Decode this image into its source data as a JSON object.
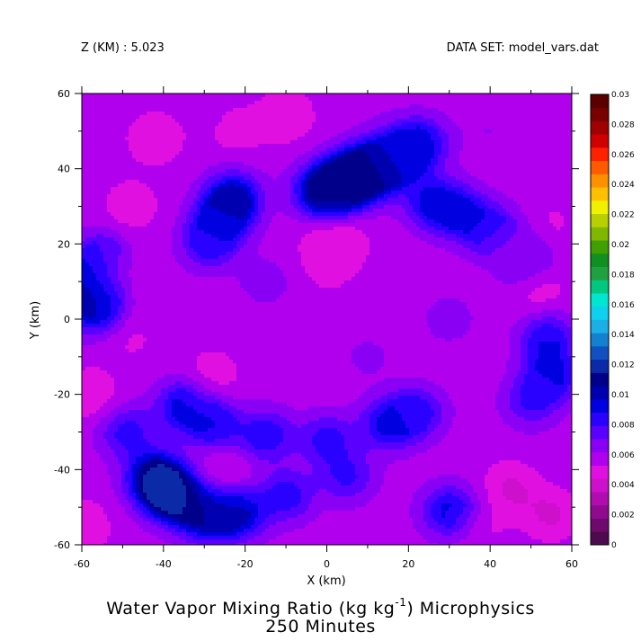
{
  "header": {
    "left": "Z (KM) : 5.023",
    "right": "DATA SET: model_vars.dat"
  },
  "title": {
    "line1_prefix": "Water Vapor Mixing Ratio (kg kg",
    "line1_sup": "-1",
    "line1_suffix": ") Microphysics",
    "line2": "250 Minutes"
  },
  "chart_data": {
    "type": "heatmap",
    "xlabel": "X (km)",
    "ylabel": "Y (km)",
    "xlim": [
      -60,
      60
    ],
    "ylim": [
      -60,
      60
    ],
    "x_ticks": [
      -60,
      -40,
      -20,
      0,
      20,
      40,
      60
    ],
    "y_ticks": [
      -60,
      -40,
      -20,
      0,
      20,
      40,
      60
    ],
    "colorbar": {
      "levels": [
        0,
        0.001,
        0.002,
        0.003,
        0.004,
        0.005,
        0.006,
        0.007,
        0.008,
        0.009,
        0.01,
        0.011,
        0.012,
        0.013,
        0.014,
        0.015,
        0.016,
        0.017,
        0.018,
        0.019,
        0.02,
        0.021,
        0.022,
        0.023,
        0.024,
        0.025,
        0.026,
        0.027,
        0.028,
        0.029,
        0.03
      ],
      "tick_labels": [
        "0",
        "0.002",
        "0.004",
        "0.006",
        "0.008",
        "0.01",
        "0.012",
        "0.014",
        "0.016",
        "0.018",
        "0.02",
        "0.022",
        "0.024",
        "0.026",
        "0.028",
        "0.03"
      ],
      "colors": [
        "#4d0a4d",
        "#6e0a6e",
        "#8f0a8f",
        "#b00cb0",
        "#cc10cc",
        "#e010e0",
        "#b000ee",
        "#8a00f5",
        "#5a00ff",
        "#2a00ff",
        "#0000e0",
        "#0000b0",
        "#00008b",
        "#0a2aa8",
        "#1050c0",
        "#1480d0",
        "#1ab0e6",
        "#10d0f0",
        "#00e6d0",
        "#00c880",
        "#20a040",
        "#109020",
        "#40a000",
        "#80b800",
        "#b8d000",
        "#f0f000",
        "#ffc000",
        "#ff9000",
        "#ff5a00",
        "#ff2000",
        "#d00000",
        "#a00000",
        "#780000",
        "#5a0000"
      ]
    },
    "field": {
      "background": 0.0065,
      "features": [
        {
          "x": 1,
          "y": 19,
          "value": 0.005
        },
        {
          "x": 0,
          "y": 12,
          "value": 0.006
        },
        {
          "x": 3,
          "y": 21,
          "value": 0.0055
        },
        {
          "x": 9,
          "y": 39,
          "value": 0.013
        },
        {
          "x": 4,
          "y": 36,
          "value": 0.013
        },
        {
          "x": -1,
          "y": 34,
          "value": 0.0125
        },
        {
          "x": 14,
          "y": 41,
          "value": 0.0115
        },
        {
          "x": 19,
          "y": 44,
          "value": 0.01
        },
        {
          "x": 23,
          "y": 47,
          "value": 0.01
        },
        {
          "x": 26,
          "y": 31,
          "value": 0.0105
        },
        {
          "x": 33,
          "y": 28,
          "value": 0.0103
        },
        {
          "x": 41,
          "y": 23,
          "value": 0.0102
        },
        {
          "x": 48,
          "y": 16,
          "value": 0.01
        },
        {
          "x": -23,
          "y": 32,
          "value": 0.012
        },
        {
          "x": -26,
          "y": 26,
          "value": 0.0105
        },
        {
          "x": -29,
          "y": 20,
          "value": 0.0095
        },
        {
          "x": -57,
          "y": 11,
          "value": 0.012
        },
        {
          "x": -57,
          "y": 3,
          "value": 0.0115
        },
        {
          "x": -55,
          "y": 17,
          "value": 0.009
        },
        {
          "x": 55,
          "y": -15,
          "value": 0.0103
        },
        {
          "x": 54,
          "y": -5,
          "value": 0.01
        },
        {
          "x": 50,
          "y": -22,
          "value": 0.009
        },
        {
          "x": -38,
          "y": -47,
          "value": 0.014
        },
        {
          "x": -42,
          "y": -42,
          "value": 0.013
        },
        {
          "x": -30,
          "y": -52,
          "value": 0.012
        },
        {
          "x": -22,
          "y": -52,
          "value": 0.0113
        },
        {
          "x": -10,
          "y": -47,
          "value": 0.0098
        },
        {
          "x": 5,
          "y": -42,
          "value": 0.0092
        },
        {
          "x": -35,
          "y": -23,
          "value": 0.0105
        },
        {
          "x": -28,
          "y": -28,
          "value": 0.0102
        },
        {
          "x": -15,
          "y": -31,
          "value": 0.01
        },
        {
          "x": 0,
          "y": -32,
          "value": 0.0095
        },
        {
          "x": 15,
          "y": -28,
          "value": 0.0102
        },
        {
          "x": 22,
          "y": -25,
          "value": 0.0098
        },
        {
          "x": 30,
          "y": -51,
          "value": 0.0105
        },
        {
          "x": -49,
          "y": -30,
          "value": 0.0095
        },
        {
          "x": -30,
          "y": 55,
          "value": 0.0065
        },
        {
          "x": -42,
          "y": 48,
          "value": 0.005
        },
        {
          "x": -48,
          "y": 30,
          "value": 0.0052
        },
        {
          "x": -50,
          "y": 12,
          "value": 0.0055
        },
        {
          "x": -48,
          "y": -5,
          "value": 0.0058
        },
        {
          "x": -58,
          "y": -20,
          "value": 0.005
        },
        {
          "x": -22,
          "y": 50,
          "value": 0.0055
        },
        {
          "x": -10,
          "y": 54,
          "value": 0.005
        },
        {
          "x": -60,
          "y": -55,
          "value": 0.005
        },
        {
          "x": 45,
          "y": 18,
          "value": 0.0053
        },
        {
          "x": 52,
          "y": 8,
          "value": 0.0052
        },
        {
          "x": 55,
          "y": 25,
          "value": 0.0058
        },
        {
          "x": 45,
          "y": -45,
          "value": 0.0048
        },
        {
          "x": 55,
          "y": -52,
          "value": 0.0048
        },
        {
          "x": 38,
          "y": -56,
          "value": 0.0058
        },
        {
          "x": -28,
          "y": -15,
          "value": 0.0052
        },
        {
          "x": -25,
          "y": -40,
          "value": 0.0055
        },
        {
          "x": 30,
          "y": 0,
          "value": 0.0075
        },
        {
          "x": 10,
          "y": -10,
          "value": 0.0072
        },
        {
          "x": -15,
          "y": 10,
          "value": 0.0075
        },
        {
          "x": 40,
          "y": 50,
          "value": 0.007
        },
        {
          "x": 10,
          "y": 58,
          "value": 0.0068
        }
      ]
    }
  }
}
